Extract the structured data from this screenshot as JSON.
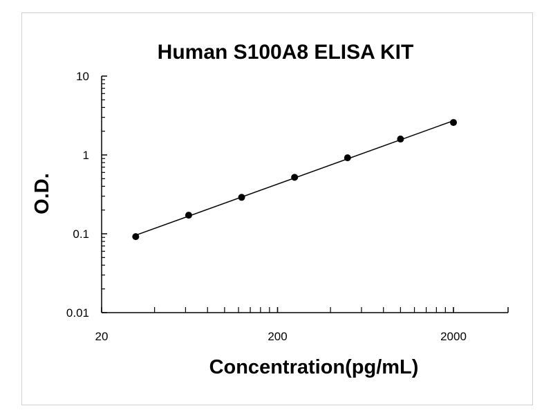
{
  "chart_data": {
    "type": "scatter",
    "title": "Human S100A8 ELISA KIT",
    "xlabel": "Concentration(pg/mL)",
    "ylabel": "O.D.",
    "xscale": "log",
    "yscale": "log",
    "xlim": [
      20,
      4000
    ],
    "ylim": [
      0.01,
      10
    ],
    "xticks": [
      20,
      200,
      2000
    ],
    "xtick_labels": [
      "20",
      "200",
      "2000"
    ],
    "yticks": [
      0.01,
      0.1,
      1,
      10
    ],
    "ytick_labels": [
      "0.01",
      "0.1",
      "1",
      "10"
    ],
    "grid": false,
    "trendline": "power fit",
    "series": [
      {
        "x": [
          31.25,
          62.5,
          125,
          250,
          500,
          1000,
          2000
        ],
        "y": [
          0.092,
          0.172,
          0.29,
          0.52,
          0.92,
          1.59,
          2.58
        ]
      }
    ],
    "colors": {
      "marker": "#000000",
      "line": "#000000"
    }
  }
}
